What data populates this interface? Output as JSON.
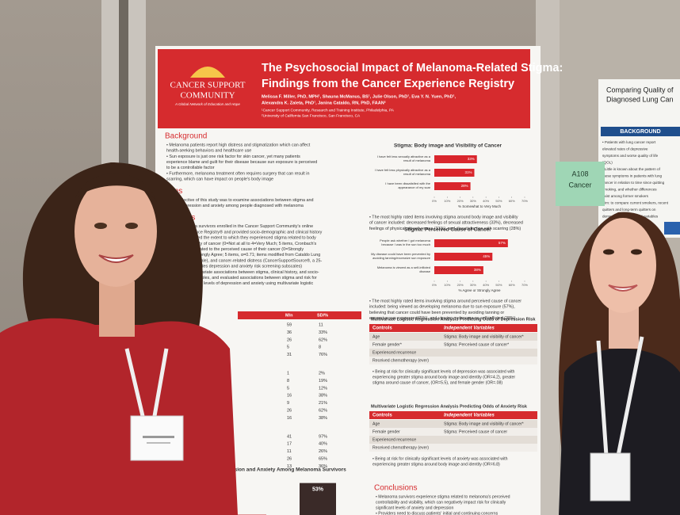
{
  "poster": {
    "logo": [
      "CANCER SUPPORT",
      "COMMUNITY"
    ],
    "logo_tagline": "A Global Network of Education and Hope",
    "title": [
      "The Psychosocial Impact of Melanoma-Related Stigma:",
      "Findings from the Cancer Experience Registry"
    ],
    "authors": [
      "Melissa F. Miller, PhD, MPH¹, Shauna McManus, BS¹, Julie Olson, PhD¹, Eva Y. N. Yuen, PhD¹,",
      "Alexandra K. Zaleta, PhD¹, Janina Cataldo, RN, PhD, FAAN²"
    ],
    "affiliations": [
      "¹Cancer Support Community, Research and Training Institute, Philadelphia, PA",
      "²University of California San Francisco, San Francisco, CA"
    ],
    "left_sections": [
      {
        "heading": "Background",
        "lines": [
          "• Melanoma patients report high distress and stigmatization which can affect",
          "  health-seeking behaviors and healthcare use",
          "• Sun exposure is just one risk factor for skin cancer, yet many patients",
          "  experience blame and guilt for their disease because sun exposure is perceived",
          "  to be a controllable factor",
          "• Furthermore, melanoma treatment often requires surgery that can result in",
          "  scarring, which can have impact on people's body image"
        ]
      },
      {
        "heading": "Aims",
        "lines": [
          "• The objective of this study was to examine associations between stigma and",
          "  risk for depression and anxiety among people diagnosed with melanoma"
        ]
      },
      {
        "heading": "Methods",
        "lines": [
          "• 242 melanoma survivors enrolled in the Cancer Support Community's online",
          "  Cancer Experience Registry® and provided socio-demographic and clinical history",
          "• Participants rated the extent to which they experienced stigma related to body",
          "  image and visibility of cancer (0=Not at all to 4=Very Much; 5 items, Cronbach's",
          "  α=.91), stigma related to the perceived cause of their cancer (0=Strongly",
          "  Disagree to 4=Strongly Agree; 5 items, α=0.71; items modified from Cataldo Lung",
          "  Cancer Stigma Scale), and cancer-related distress (CancerSupportSource®, a 25-",
          "  item tool that includes depression and anxiety risk screening subscales)",
          "• We examined bivariate associations between stigma, clinical history, and socio-",
          "  demographic variables, and evaluated associations between stigma and risk for",
          "  clinically significant levels of depression and anxiety using multivariate logistic",
          "  regression models"
        ]
      }
    ],
    "results_heading": "Results",
    "stats_header": [
      "M/n",
      "SD/%"
    ],
    "stats_rows": [
      [
        "59",
        "11"
      ],
      [
        "36",
        "33%"
      ],
      [
        "26",
        "62%"
      ],
      [
        "5",
        "8"
      ],
      [
        "31",
        "76%"
      ],
      [
        "1",
        "2%"
      ],
      [
        "8",
        "19%"
      ],
      [
        "5",
        "12%"
      ],
      [
        "16",
        "38%"
      ],
      [
        "9",
        "21%"
      ],
      [
        "26",
        "62%"
      ],
      [
        "16",
        "38%"
      ],
      [
        "41",
        "97%"
      ],
      [
        "17",
        "40%"
      ],
      [
        "11",
        "26%"
      ],
      [
        "26",
        "65%"
      ],
      [
        "13",
        "36%"
      ]
    ],
    "bottom_chart": {
      "title": "ssion and Anxiety Among Melanoma Survivors",
      "bars": [
        {
          "value": 11,
          "value_label": "11%",
          "color": "#c8242b"
        },
        {
          "value": 53,
          "value_label": "53%",
          "color": "#3a2a28"
        }
      ]
    },
    "charts": [
      {
        "title": "Stigma: Body image and Visibility of Cancer",
        "color": "#d9262c",
        "xlim": [
          0,
          70
        ],
        "ticks": [
          {
            "value": 0,
            "label": "0%"
          },
          {
            "value": 10,
            "label": "10%"
          },
          {
            "value": 20,
            "label": "20%"
          },
          {
            "value": 30,
            "label": "30%"
          },
          {
            "value": 40,
            "label": "40%"
          },
          {
            "value": 50,
            "label": "50%"
          },
          {
            "value": 60,
            "label": "60%"
          },
          {
            "value": 70,
            "label": "70%"
          }
        ],
        "axis_label": "% Somewhat to Very Much",
        "bars": [
          {
            "label": [
              "I have felt less sexually attractive as a",
              "result of melanoma"
            ],
            "value": 33,
            "value_label": "33%"
          },
          {
            "label": [
              "I have felt less physically attractive as a",
              "result of melanoma"
            ],
            "value": 31,
            "value_label": "31%"
          },
          {
            "label": [
              "I have been dissatisfied with the",
              "appearance of my scar"
            ],
            "value": 28,
            "value_label": "28%"
          }
        ],
        "note": [
          "• The most highly rated items involving stigma around body image and visibility",
          "  of cancer included: decreased feelings of sexual attractiveness (33%), decreased",
          "  feelings of physical attractiveness (31%), and dissatisfaction with scarring (28%)"
        ]
      },
      {
        "title": "Stigma: Perceived Cause of Cancer",
        "color": "#d9262c",
        "xlim": [
          0,
          70
        ],
        "ticks": [
          {
            "value": 0,
            "label": "0%"
          },
          {
            "value": 10,
            "label": "10%"
          },
          {
            "value": 20,
            "label": "20%"
          },
          {
            "value": 30,
            "label": "30%"
          },
          {
            "value": 40,
            "label": "40%"
          },
          {
            "value": 50,
            "label": "50%"
          },
          {
            "value": 60,
            "label": "60%"
          },
          {
            "value": 70,
            "label": "70%"
          }
        ],
        "axis_label": "% Agree or Strongly Agree",
        "bars": [
          {
            "label": [
              "People ask whether I got melanoma",
              "because I was in the sun too much"
            ],
            "value": 57,
            "value_label": "57%"
          },
          {
            "label": [
              "My disease could have been prevented by",
              "avoiding tanning/excessive sun exposure"
            ],
            "value": 45,
            "value_label": "45%"
          },
          {
            "label": [
              "Melanoma is viewed as a self-inflicted",
              "disease"
            ],
            "value": 38,
            "value_label": "38%"
          }
        ],
        "note": [
          "• The most highly rated items involving stigma around perceived cause of cancer",
          "  included: being viewed as developing melanoma due to sun exposure (57%),",
          "  believing that cancer could have been prevented by avoiding tanning or",
          "  excessive sun exposure (45%), and viewing melanoma as self-inflicted (38%)"
        ]
      }
    ],
    "tables": [
      {
        "title": "Multivariate Logistic Regression Analysis Predicting Odds of Depression Risk",
        "columns": [
          "Controls",
          "Independent Variables"
        ],
        "rows": [
          [
            "Age",
            "Stigma: Body image and visibility of cancer*"
          ],
          [
            "Female gender*",
            "Stigma: Perceived cause of cancer*"
          ],
          [
            "Experienced recurrence",
            ""
          ],
          [
            "Received chemotherapy (ever)",
            ""
          ]
        ],
        "note": [
          "• Being at risk for clinically significant levels of depression was associated with",
          "  experiencing greater stigma around body image and identity (OR=4.2), greater",
          "  stigma around cause of cancer, (OR=5.5), and female gender (OR=.08)"
        ]
      },
      {
        "title": "Multivariate Logistic Regression Analysis Predicting Odds of Anxiety Risk",
        "columns": [
          "Controls",
          "Independent Variables"
        ],
        "rows": [
          [
            "Age",
            "Stigma: Body image and visibility of cancer*"
          ],
          [
            "Female gender",
            "Stigma: Perceived cause of cancer"
          ],
          [
            "Experienced recurrence",
            ""
          ],
          [
            "Received chemotherapy (ever)",
            ""
          ]
        ],
        "note": [
          "• Being at risk for clinically significant levels of anxiety was associated with",
          "  experiencing greater stigma around body image and identity (OR=6.8)"
        ]
      }
    ],
    "conclusions": {
      "heading": "Conclusions",
      "lines": [
        "• Melanoma survivors experience stigma related to melanoma's perceived",
        "  controllability and visibility, which can negatively impact risk for clinically",
        "  significant levels of anxiety and depression",
        "• Providers need to discuss patients' initial and continuing concerns"
      ]
    }
  },
  "sign": [
    "A108",
    "Cancer"
  ],
  "side_poster": {
    "title": [
      "Comparing Quality of",
      "Diagnosed Lung Can"
    ],
    "heading": "BACKGROUND",
    "lines": [
      "• Patients with lung cancer report",
      "  elevated rates of depressive",
      "  symptoms and worse quality of life",
      "  (QOL)",
      "• Little is known about the pattern of",
      "  these symptoms in patients with lung",
      "  cancer in relation to time since quitting",
      "  smoking, and whether differences",
      "  exist among former smokers",
      "Aim: to compare current smokers, recent",
      "  quitters and long-term quitters on",
      "  demographic and clinical variables"
    ]
  }
}
